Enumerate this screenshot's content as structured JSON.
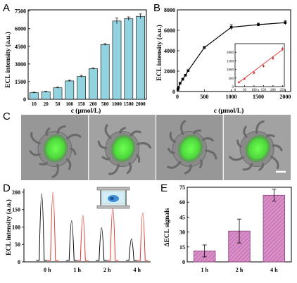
{
  "figure": {
    "panels": {
      "A": {
        "letter": "A"
      },
      "B": {
        "letter": "B"
      },
      "C": {
        "letter": "C"
      },
      "D": {
        "letter": "D"
      },
      "E": {
        "letter": "E"
      }
    },
    "colors": {
      "barA": "#93d3df",
      "barE": "#d98fc7",
      "lineB": "#000000",
      "inset_fit": "#e0342c",
      "inset_points": "#e0342c",
      "traceBlack": "#000000",
      "traceRed": "#e0342c",
      "cell_green": "#59e047",
      "microscopy_bg": "#9a9a9a"
    }
  },
  "chart_data": [
    {
      "panel": "A",
      "type": "bar",
      "categories": [
        "10",
        "20",
        "50",
        "100",
        "150",
        "200",
        "500",
        "1000",
        "1500",
        "2000"
      ],
      "values": [
        560,
        640,
        980,
        1560,
        1940,
        2600,
        4650,
        6650,
        6850,
        7050
      ],
      "errors": [
        40,
        40,
        50,
        60,
        90,
        60,
        80,
        250,
        150,
        200
      ],
      "xlabel": "c (μmol/L)",
      "ylabel": "ECL intensity (a.u.)",
      "ylim": [
        0,
        7600
      ],
      "yticks": [
        0,
        1500,
        3000,
        4500,
        6000,
        7500
      ],
      "yticklabels": [
        "0",
        "1500",
        "3000",
        "4500",
        "6000",
        "7500"
      ]
    },
    {
      "panel": "B",
      "type": "line",
      "x": [
        10,
        20,
        50,
        100,
        150,
        200,
        500,
        1000,
        1500,
        2000
      ],
      "y": [
        200,
        400,
        800,
        1200,
        1600,
        2050,
        4300,
        6300,
        6550,
        6750
      ],
      "errors": [
        60,
        60,
        80,
        100,
        100,
        100,
        120,
        250,
        150,
        200
      ],
      "xlabel": "c (μmol/L)",
      "ylabel": "ECL intensity (a.u.)",
      "xlim": [
        0,
        2100
      ],
      "ylim": [
        0,
        8000
      ],
      "xticks": [
        0,
        500,
        1000,
        1500,
        2000
      ],
      "xticklabels": [
        "0",
        "500",
        "1000",
        "1500",
        "2000"
      ],
      "yticks": [
        0,
        2000,
        4000,
        6000,
        8000
      ],
      "yticklabels": [
        "0",
        "2000",
        "4000",
        "6000",
        "8000"
      ],
      "inset": {
        "type": "scatter",
        "x": [
          20,
          50,
          100,
          150,
          200,
          250
        ],
        "y": [
          250,
          450,
          800,
          1200,
          1650,
          2200
        ],
        "errors": [
          60,
          50,
          80,
          80,
          100,
          120
        ],
        "xlim": [
          0,
          260
        ],
        "ylim": [
          0,
          2500
        ],
        "xticks": [
          0,
          50,
          100,
          150,
          200,
          250
        ],
        "xticklabels": [
          "0",
          "50",
          "100",
          "150",
          "200",
          "250"
        ],
        "yticks": [
          0,
          500,
          1000,
          1500,
          2000
        ],
        "yticklabels": [
          "0",
          "500",
          "1000",
          "1500",
          "2000"
        ],
        "fit": [
          [
            20,
            240
          ],
          [
            250,
            2150
          ]
        ]
      }
    },
    {
      "panel": "D",
      "type": "line",
      "categories": [
        "0 h",
        "1 h",
        "2 h",
        "4 h"
      ],
      "peaks_black": [
        195,
        118,
        98,
        66
      ],
      "peaks_red": [
        200,
        133,
        155,
        140
      ],
      "ylabel": "ECL intensity (a.u.)",
      "ylim": [
        0,
        210
      ],
      "yticks": [
        0,
        50,
        100,
        150,
        200
      ],
      "yticklabels": [
        "0",
        "50",
        "100",
        "150",
        "200"
      ]
    },
    {
      "panel": "E",
      "type": "bar",
      "categories": [
        "1 h",
        "2 h",
        "4 h"
      ],
      "values": [
        11,
        31,
        67
      ],
      "errors": [
        6,
        12,
        6
      ],
      "ylabel": "ΔECL signals",
      "ylim": [
        0,
        75
      ],
      "yticks": [
        0,
        15,
        30,
        45,
        60,
        75
      ],
      "yticklabels": [
        "0",
        "15",
        "30",
        "45",
        "60",
        "75"
      ]
    }
  ]
}
